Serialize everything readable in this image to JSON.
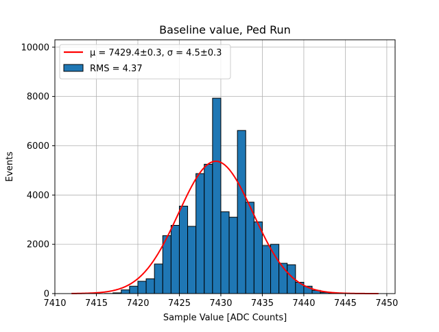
{
  "chart_data": {
    "type": "bar",
    "title": "Baseline value, Ped Run",
    "xlabel": "Sample Value [ADC Counts]",
    "ylabel": "Events",
    "xlim": [
      7410,
      7451
    ],
    "ylim": [
      0,
      10300
    ],
    "xticks": [
      7410,
      7415,
      7420,
      7425,
      7430,
      7435,
      7440,
      7445,
      7450
    ],
    "yticks": [
      0,
      2000,
      4000,
      6000,
      8000,
      10000
    ],
    "grid": true,
    "legend_position": "top-left",
    "bar_color": "#1f77b4",
    "fit_color": "#ff0000",
    "bin_width": 1,
    "bin_starts": [
      7412,
      7413,
      7414,
      7415,
      7416,
      7417,
      7418,
      7419,
      7420,
      7421,
      7422,
      7423,
      7424,
      7425,
      7426,
      7427,
      7428,
      7429,
      7430,
      7431,
      7432,
      7433,
      7434,
      7435,
      7436,
      7437,
      7438,
      7439,
      7440,
      7441,
      7442,
      7443,
      7444,
      7445,
      7446,
      7447,
      7448
    ],
    "counts": [
      0,
      0,
      0,
      0,
      5,
      30,
      150,
      300,
      500,
      600,
      1200,
      2350,
      2770,
      3550,
      2730,
      4870,
      5250,
      7930,
      3320,
      3100,
      6620,
      3710,
      2910,
      1950,
      2000,
      1230,
      1170,
      460,
      300,
      130,
      50,
      20,
      5,
      0,
      0,
      0,
      0
    ],
    "series": [
      {
        "name": "hist",
        "legend_label": "RMS = 4.37",
        "rms": 4.37
      },
      {
        "name": "gaussian-fit",
        "legend_label": "μ = 7429.4±0.3, σ = 4.5±0.3",
        "mu": 7429.4,
        "sigma": 4.5,
        "amplitude": 5370,
        "x_range": [
          7412,
          7449
        ]
      }
    ]
  }
}
